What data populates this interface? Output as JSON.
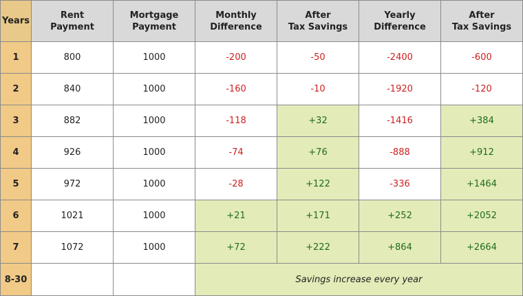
{
  "headers": [
    "Years",
    "Rent Payment",
    "Mortgage Payment",
    "Monthly Difference",
    "After Tax Savings",
    "Yearly Difference",
    "After Tax Savings"
  ],
  "rows": [
    {
      "year": "1",
      "rent": "800",
      "mortgage": "1000",
      "monthly_diff": "-200",
      "monthly_tax": "-50",
      "yearly_diff": "-2400",
      "yearly_tax": "-600"
    },
    {
      "year": "2",
      "rent": "840",
      "mortgage": "1000",
      "monthly_diff": "-160",
      "monthly_tax": "-10",
      "yearly_diff": "-1920",
      "yearly_tax": "-120"
    },
    {
      "year": "3",
      "rent": "882",
      "mortgage": "1000",
      "monthly_diff": "-118",
      "monthly_tax": "+32",
      "yearly_diff": "-1416",
      "yearly_tax": "+384"
    },
    {
      "year": "4",
      "rent": "926",
      "mortgage": "1000",
      "monthly_diff": "-74",
      "monthly_tax": "+76",
      "yearly_diff": "-888",
      "yearly_tax": "+912"
    },
    {
      "year": "5",
      "rent": "972",
      "mortgage": "1000",
      "monthly_diff": "-28",
      "monthly_tax": "+122",
      "yearly_diff": "-336",
      "yearly_tax": "+1464"
    },
    {
      "year": "6",
      "rent": "1021",
      "mortgage": "1000",
      "monthly_diff": "+21",
      "monthly_tax": "+171",
      "yearly_diff": "+252",
      "yearly_tax": "+2052"
    },
    {
      "year": "7",
      "rent": "1072",
      "mortgage": "1000",
      "monthly_diff": "+72",
      "monthly_tax": "+222",
      "yearly_diff": "+864",
      "yearly_tax": "+2664"
    }
  ],
  "last_row": {
    "year": "8-30",
    "note": "Savings increase every year"
  },
  "colors": {
    "header_bg": "#d9d9d9",
    "year_bg": "#f0ca86",
    "savings_bg": "#e3ebb8",
    "negative": "#cc1f1f",
    "positive": "#1f6b1f"
  }
}
